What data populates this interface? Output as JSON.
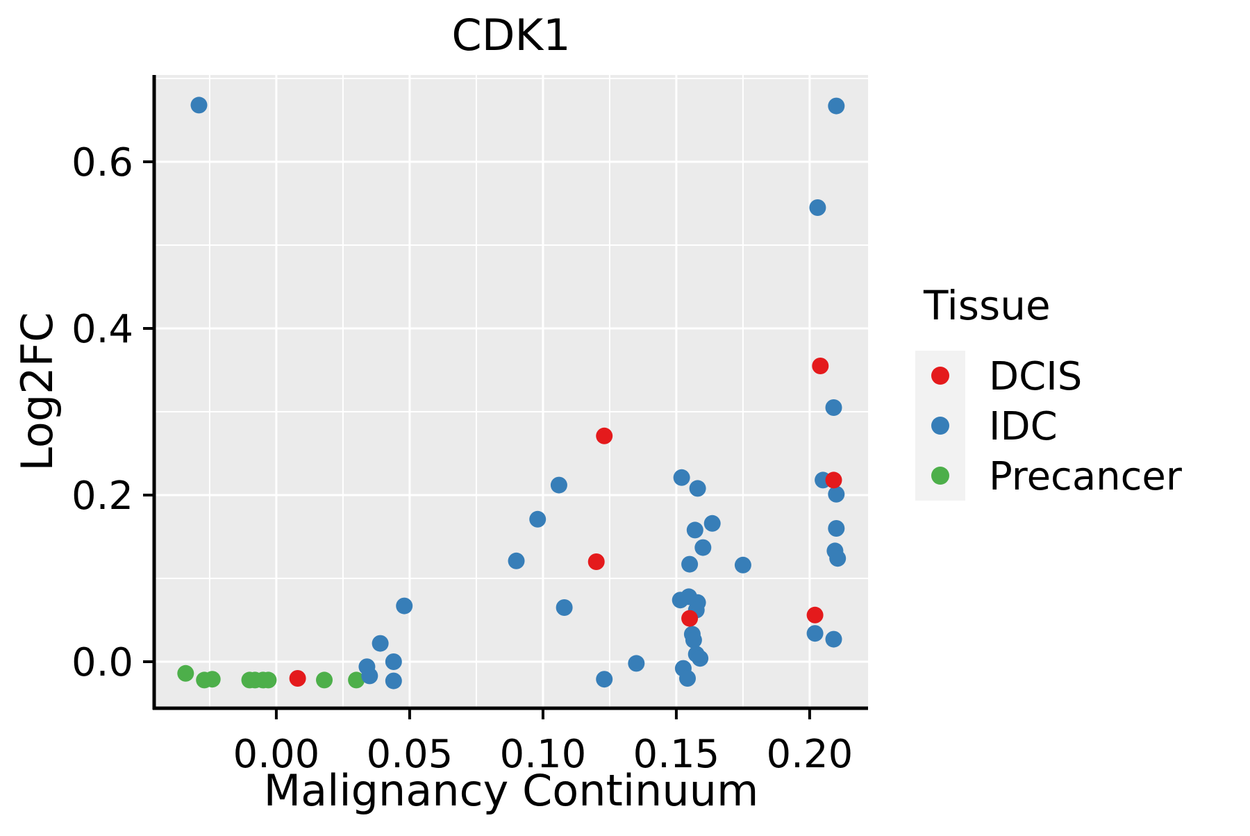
{
  "page": {
    "background": "#ffffff"
  },
  "chart_data": {
    "type": "scatter",
    "title": "CDK1",
    "xlabel": "Malignancy Continuum",
    "ylabel": "Log2FC",
    "xlim": [
      -0.0458,
      0.2219
    ],
    "ylim": [
      -0.0558,
      0.7042
    ],
    "x_ticks": [
      0.0,
      0.05,
      0.1,
      0.15,
      0.2
    ],
    "x_tick_labels": [
      "0.00",
      "0.05",
      "0.10",
      "0.15",
      "0.20"
    ],
    "y_ticks": [
      0.0,
      0.2,
      0.4,
      0.6
    ],
    "y_tick_labels": [
      "0.0",
      "0.2",
      "0.4",
      "0.6"
    ],
    "grid": "major+minor",
    "panel_background": "#EBEBEB",
    "grid_color": "#FFFFFF",
    "axis_color": "#000000",
    "legend": {
      "title": "Tissue",
      "position": "right",
      "key_background": "#F2F2F2",
      "entries": [
        {
          "label": "DCIS",
          "color": "#E41A1C"
        },
        {
          "label": "IDC",
          "color": "#377EB8"
        },
        {
          "label": "Precancer",
          "color": "#4DAF4A"
        }
      ]
    },
    "series": [
      {
        "name": "Precancer",
        "color": "#4DAF4A",
        "points": [
          [
            -0.034,
            -0.014
          ],
          [
            -0.027,
            -0.022
          ],
          [
            -0.024,
            -0.021
          ],
          [
            -0.01,
            -0.022
          ],
          [
            -0.008,
            -0.022
          ],
          [
            -0.005,
            -0.022
          ],
          [
            -0.003,
            -0.022
          ],
          [
            0.018,
            -0.022
          ],
          [
            0.03,
            -0.022
          ]
        ]
      },
      {
        "name": "IDC",
        "color": "#377EB8",
        "points": [
          [
            -0.029,
            0.668
          ],
          [
            0.21,
            0.667
          ],
          [
            0.203,
            0.545
          ],
          [
            0.209,
            0.305
          ],
          [
            0.205,
            0.218
          ],
          [
            0.21,
            0.201
          ],
          [
            0.21,
            0.16
          ],
          [
            0.2095,
            0.133
          ],
          [
            0.2105,
            0.124
          ],
          [
            0.202,
            0.034
          ],
          [
            0.209,
            0.027
          ],
          [
            0.152,
            0.221
          ],
          [
            0.158,
            0.208
          ],
          [
            0.1635,
            0.166
          ],
          [
            0.157,
            0.158
          ],
          [
            0.16,
            0.137
          ],
          [
            0.155,
            0.117
          ],
          [
            0.175,
            0.116
          ],
          [
            0.1515,
            0.074
          ],
          [
            0.1547,
            0.078
          ],
          [
            0.158,
            0.071
          ],
          [
            0.1575,
            0.062
          ],
          [
            0.156,
            0.033
          ],
          [
            0.1565,
            0.026
          ],
          [
            0.1575,
            0.009
          ],
          [
            0.1589,
            0.004
          ],
          [
            0.1526,
            -0.008
          ],
          [
            0.1542,
            -0.02
          ],
          [
            0.106,
            0.212
          ],
          [
            0.098,
            0.171
          ],
          [
            0.09,
            0.121
          ],
          [
            0.108,
            0.065
          ],
          [
            0.135,
            -0.002
          ],
          [
            0.123,
            -0.021
          ],
          [
            0.048,
            0.067
          ],
          [
            0.039,
            0.022
          ],
          [
            0.044,
            0.0
          ],
          [
            0.044,
            -0.023
          ],
          [
            0.034,
            -0.006
          ],
          [
            0.035,
            -0.017
          ]
        ]
      },
      {
        "name": "DCIS",
        "color": "#E41A1C",
        "points": [
          [
            0.204,
            0.355
          ],
          [
            0.209,
            0.218
          ],
          [
            0.202,
            0.056
          ],
          [
            0.123,
            0.271
          ],
          [
            0.12,
            0.12
          ],
          [
            0.155,
            0.052
          ],
          [
            0.008,
            -0.02
          ]
        ]
      }
    ]
  }
}
